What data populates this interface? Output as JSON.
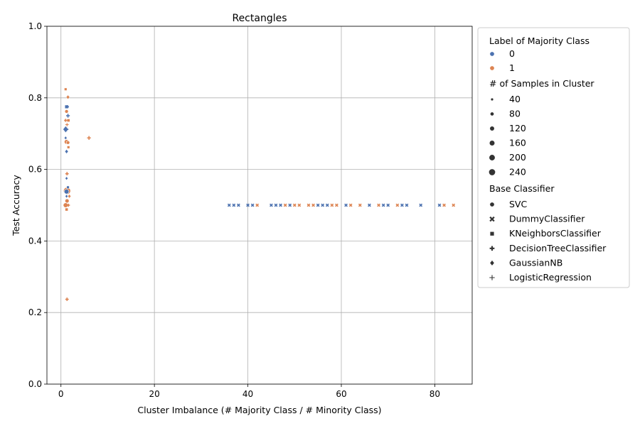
{
  "chart_data": {
    "type": "scatter",
    "title": "Rectangles",
    "xlabel": "Cluster Imbalance (# Majority Class / # Minority Class)",
    "ylabel": "Test Accuracy",
    "xlim": [
      -3,
      88
    ],
    "ylim": [
      0,
      1
    ],
    "xticks": [
      0,
      20,
      40,
      60,
      80
    ],
    "yticks": [
      0.0,
      0.2,
      0.4,
      0.6,
      0.8,
      1.0
    ],
    "ytick_labels": [
      "0.0",
      "0.2",
      "0.4",
      "0.6",
      "0.8",
      "1.0"
    ],
    "grid": true,
    "colors": {
      "0": "#4c72b0",
      "1": "#dd8452"
    },
    "legend": {
      "placement": "outside-right",
      "hue_title": "Label of Majority Class",
      "hue": [
        {
          "label": "0",
          "color": "#4c72b0"
        },
        {
          "label": "1",
          "color": "#dd8452"
        }
      ],
      "size_title": "# of Samples in Cluster",
      "sizes": [
        {
          "label": "40",
          "size": 40
        },
        {
          "label": "80",
          "size": 80
        },
        {
          "label": "120",
          "size": 120
        },
        {
          "label": "160",
          "size": 160
        },
        {
          "label": "200",
          "size": 200
        },
        {
          "label": "240",
          "size": 240
        }
      ],
      "style_title": "Base Classifier",
      "styles": [
        {
          "label": "SVC",
          "marker": "circle"
        },
        {
          "label": "DummyClassifier",
          "marker": "x"
        },
        {
          "label": "KNeighborsClassifier",
          "marker": "square"
        },
        {
          "label": "DecisionTreeClassifier",
          "marker": "plus"
        },
        {
          "label": "GaussianNB",
          "marker": "diamond"
        },
        {
          "label": "LogisticRegression",
          "marker": "thin-plus"
        }
      ]
    },
    "points": [
      {
        "x": 1.0,
        "y": 0.824,
        "label": 1,
        "clf": "KNeighborsClassifier",
        "n": 40
      },
      {
        "x": 1.5,
        "y": 0.802,
        "label": 1,
        "clf": "GaussianNB",
        "n": 60
      },
      {
        "x": 1.2,
        "y": 0.775,
        "label": 0,
        "clf": "KNeighborsClassifier",
        "n": 70
      },
      {
        "x": 1.4,
        "y": 0.775,
        "label": 0,
        "clf": "DecisionTreeClassifier",
        "n": 40
      },
      {
        "x": 1.2,
        "y": 0.762,
        "label": 1,
        "clf": "SVC",
        "n": 60
      },
      {
        "x": 1.5,
        "y": 0.75,
        "label": 0,
        "clf": "DecisionTreeClassifier",
        "n": 60
      },
      {
        "x": 1.0,
        "y": 0.737,
        "label": 1,
        "clf": "DecisionTreeClassifier",
        "n": 40
      },
      {
        "x": 1.6,
        "y": 0.737,
        "label": 1,
        "clf": "KNeighborsClassifier",
        "n": 50
      },
      {
        "x": 1.3,
        "y": 0.725,
        "label": 1,
        "clf": "LogisticRegression",
        "n": 40
      },
      {
        "x": 1.0,
        "y": 0.712,
        "label": 0,
        "clf": "GaussianNB",
        "n": 140
      },
      {
        "x": 1.2,
        "y": 0.712,
        "label": 0,
        "clf": "DecisionTreeClassifier",
        "n": 60
      },
      {
        "x": 6.0,
        "y": 0.688,
        "label": 1,
        "clf": "DecisionTreeClassifier",
        "n": 60
      },
      {
        "x": 1.0,
        "y": 0.688,
        "label": 0,
        "clf": "GaussianNB",
        "n": 40
      },
      {
        "x": 1.2,
        "y": 0.677,
        "label": 1,
        "clf": "SVC",
        "n": 100
      },
      {
        "x": 1.5,
        "y": 0.675,
        "label": 1,
        "clf": "SVC",
        "n": 60
      },
      {
        "x": 1.6,
        "y": 0.662,
        "label": 1,
        "clf": "KNeighborsClassifier",
        "n": 40
      },
      {
        "x": 1.2,
        "y": 0.65,
        "label": 0,
        "clf": "GaussianNB",
        "n": 60
      },
      {
        "x": 1.3,
        "y": 0.588,
        "label": 1,
        "clf": "DecisionTreeClassifier",
        "n": 50
      },
      {
        "x": 1.2,
        "y": 0.575,
        "label": 0,
        "clf": "GaussianNB",
        "n": 40
      },
      {
        "x": 1.5,
        "y": 0.55,
        "label": 0,
        "clf": "KNeighborsClassifier",
        "n": 40
      },
      {
        "x": 1.3,
        "y": 0.54,
        "label": 1,
        "clf": "SVC",
        "n": 240
      },
      {
        "x": 1.2,
        "y": 0.538,
        "label": 0,
        "clf": "SVC",
        "n": 110
      },
      {
        "x": 1.8,
        "y": 0.525,
        "label": 1,
        "clf": "GaussianNB",
        "n": 50
      },
      {
        "x": 1.2,
        "y": 0.525,
        "label": 0,
        "clf": "GaussianNB",
        "n": 40
      },
      {
        "x": 1.3,
        "y": 0.512,
        "label": 1,
        "clf": "SVC",
        "n": 80
      },
      {
        "x": 1.0,
        "y": 0.5,
        "label": 1,
        "clf": "SVC",
        "n": 110
      },
      {
        "x": 1.6,
        "y": 0.5,
        "label": 1,
        "clf": "DecisionTreeClassifier",
        "n": 40
      },
      {
        "x": 1.2,
        "y": 0.488,
        "label": 1,
        "clf": "KNeighborsClassifier",
        "n": 50
      },
      {
        "x": 1.3,
        "y": 0.237,
        "label": 1,
        "clf": "DecisionTreeClassifier",
        "n": 50
      },
      {
        "x": 36,
        "y": 0.5,
        "label": 0,
        "clf": "DummyClassifier",
        "n": 40
      },
      {
        "x": 37,
        "y": 0.5,
        "label": 0,
        "clf": "DummyClassifier",
        "n": 40
      },
      {
        "x": 38,
        "y": 0.5,
        "label": 0,
        "clf": "DummyClassifier",
        "n": 40
      },
      {
        "x": 40,
        "y": 0.5,
        "label": 0,
        "clf": "DummyClassifier",
        "n": 40
      },
      {
        "x": 41,
        "y": 0.5,
        "label": 0,
        "clf": "DummyClassifier",
        "n": 40
      },
      {
        "x": 42,
        "y": 0.5,
        "label": 1,
        "clf": "DummyClassifier",
        "n": 40
      },
      {
        "x": 45,
        "y": 0.5,
        "label": 0,
        "clf": "DummyClassifier",
        "n": 40
      },
      {
        "x": 46,
        "y": 0.5,
        "label": 0,
        "clf": "DummyClassifier",
        "n": 40
      },
      {
        "x": 47,
        "y": 0.5,
        "label": 0,
        "clf": "DummyClassifier",
        "n": 40
      },
      {
        "x": 48,
        "y": 0.5,
        "label": 1,
        "clf": "DummyClassifier",
        "n": 40
      },
      {
        "x": 49,
        "y": 0.5,
        "label": 0,
        "clf": "DummyClassifier",
        "n": 40
      },
      {
        "x": 50,
        "y": 0.5,
        "label": 1,
        "clf": "DummyClassifier",
        "n": 40
      },
      {
        "x": 51,
        "y": 0.5,
        "label": 1,
        "clf": "DummyClassifier",
        "n": 40
      },
      {
        "x": 53,
        "y": 0.5,
        "label": 1,
        "clf": "DummyClassifier",
        "n": 40
      },
      {
        "x": 54,
        "y": 0.5,
        "label": 1,
        "clf": "DummyClassifier",
        "n": 40
      },
      {
        "x": 55,
        "y": 0.5,
        "label": 0,
        "clf": "DummyClassifier",
        "n": 40
      },
      {
        "x": 56,
        "y": 0.5,
        "label": 0,
        "clf": "DummyClassifier",
        "n": 40
      },
      {
        "x": 57,
        "y": 0.5,
        "label": 0,
        "clf": "DummyClassifier",
        "n": 40
      },
      {
        "x": 58,
        "y": 0.5,
        "label": 1,
        "clf": "DummyClassifier",
        "n": 40
      },
      {
        "x": 59,
        "y": 0.5,
        "label": 1,
        "clf": "DummyClassifier",
        "n": 40
      },
      {
        "x": 61,
        "y": 0.5,
        "label": 0,
        "clf": "DummyClassifier",
        "n": 40
      },
      {
        "x": 62,
        "y": 0.5,
        "label": 1,
        "clf": "DummyClassifier",
        "n": 40
      },
      {
        "x": 64,
        "y": 0.5,
        "label": 1,
        "clf": "DummyClassifier",
        "n": 40
      },
      {
        "x": 66,
        "y": 0.5,
        "label": 0,
        "clf": "DummyClassifier",
        "n": 40
      },
      {
        "x": 68,
        "y": 0.5,
        "label": 1,
        "clf": "DummyClassifier",
        "n": 40
      },
      {
        "x": 69,
        "y": 0.5,
        "label": 0,
        "clf": "DummyClassifier",
        "n": 40
      },
      {
        "x": 70,
        "y": 0.5,
        "label": 0,
        "clf": "DummyClassifier",
        "n": 40
      },
      {
        "x": 72,
        "y": 0.5,
        "label": 1,
        "clf": "DummyClassifier",
        "n": 40
      },
      {
        "x": 73,
        "y": 0.5,
        "label": 0,
        "clf": "DummyClassifier",
        "n": 40
      },
      {
        "x": 74,
        "y": 0.5,
        "label": 0,
        "clf": "DummyClassifier",
        "n": 40
      },
      {
        "x": 77,
        "y": 0.5,
        "label": 0,
        "clf": "DummyClassifier",
        "n": 40
      },
      {
        "x": 81,
        "y": 0.5,
        "label": 0,
        "clf": "DummyClassifier",
        "n": 40
      },
      {
        "x": 82,
        "y": 0.5,
        "label": 1,
        "clf": "DummyClassifier",
        "n": 40
      },
      {
        "x": 84,
        "y": 0.5,
        "label": 1,
        "clf": "DummyClassifier",
        "n": 40
      }
    ]
  }
}
